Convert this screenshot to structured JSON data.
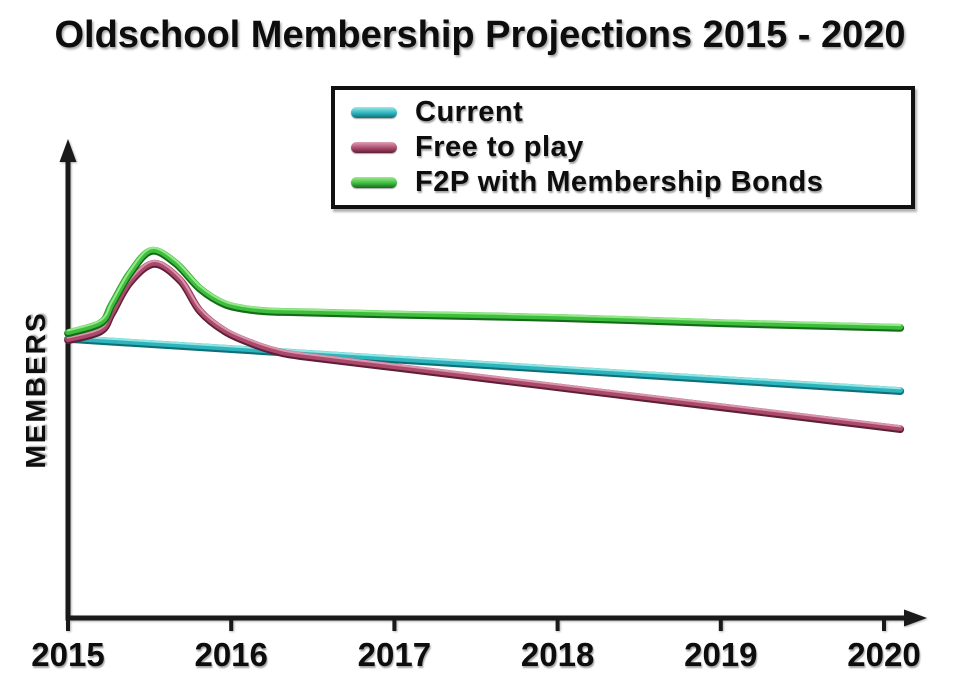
{
  "title": "Oldschool Membership Projections 2015 - 2020",
  "colors": {
    "background": "#ffffff",
    "axis": "#1a1a1a",
    "text": "#0d0d0d",
    "legend_border": "#111111",
    "current_line": "#2db4bd",
    "free_to_play_line": "#ad4a6b",
    "f2p_bonds_line": "#3fbd3f"
  },
  "legend": {
    "items": [
      "Current",
      "Free to play",
      "F2P with Membership Bonds"
    ]
  },
  "chart_data": {
    "type": "line",
    "title": "Oldschool Membership Projections 2015 - 2020",
    "xlabel": "",
    "ylabel": "MEMBERS",
    "x_ticks": [
      2015,
      2016,
      2017,
      2018,
      2019,
      2020
    ],
    "x_tick_labels": [
      "2015",
      "2016",
      "2017",
      "2018",
      "2019",
      "2020"
    ],
    "xlim": [
      2015,
      2020.26
    ],
    "ylim": [
      0,
      100
    ],
    "y_axis_numeric_labels": false,
    "grid": false,
    "legend_position": "top-center",
    "notes": "Y axis shows no numbers; values below are relative member levels (0-100) estimated from the drawing. Free-to-play and F2P-with-bonds spike shortly after 2015; current membership declines slowly; free-to-play falls below current by late 2016.",
    "series": [
      {
        "name": "Current",
        "colors": {
          "main": "#2db4bd",
          "dark": "#0e6f78",
          "highlight": "#9feae6"
        },
        "points": [
          [
            2015,
            59.0
          ],
          [
            2020.1,
            48.0
          ]
        ]
      },
      {
        "name": "Free to play",
        "colors": {
          "main": "#ad4a6b",
          "dark": "#5e1f38",
          "highlight": "#dda0b6"
        },
        "points": [
          [
            2015,
            58.7
          ],
          [
            2015.2,
            60.6
          ],
          [
            2015.27,
            64.4
          ],
          [
            2015.38,
            70.9
          ],
          [
            2015.53,
            74.8
          ],
          [
            2015.69,
            71.2
          ],
          [
            2015.81,
            64.8
          ],
          [
            2015.96,
            60.6
          ],
          [
            2016.12,
            58.1
          ],
          [
            2016.27,
            56.4
          ],
          [
            2016.42,
            55.4
          ],
          [
            2017,
            53.0
          ],
          [
            2018,
            48.8
          ],
          [
            2019,
            44.6
          ],
          [
            2020.1,
            40.0
          ]
        ]
      },
      {
        "name": "F2P with Membership Bonds",
        "colors": {
          "main": "#3fbd3f",
          "dark": "#146b18",
          "highlight": "#9fec90"
        },
        "points": [
          [
            2015,
            60.2
          ],
          [
            2015.2,
            62.3
          ],
          [
            2015.27,
            66.3
          ],
          [
            2015.38,
            72.8
          ],
          [
            2015.51,
            77.5
          ],
          [
            2015.66,
            74.9
          ],
          [
            2015.81,
            69.5
          ],
          [
            2015.96,
            66.3
          ],
          [
            2016.12,
            65.1
          ],
          [
            2016.27,
            64.7
          ],
          [
            2016.42,
            64.6
          ],
          [
            2017,
            64.1
          ],
          [
            2018,
            63.4
          ],
          [
            2019,
            62.3
          ],
          [
            2020.1,
            61.3
          ]
        ]
      }
    ]
  }
}
